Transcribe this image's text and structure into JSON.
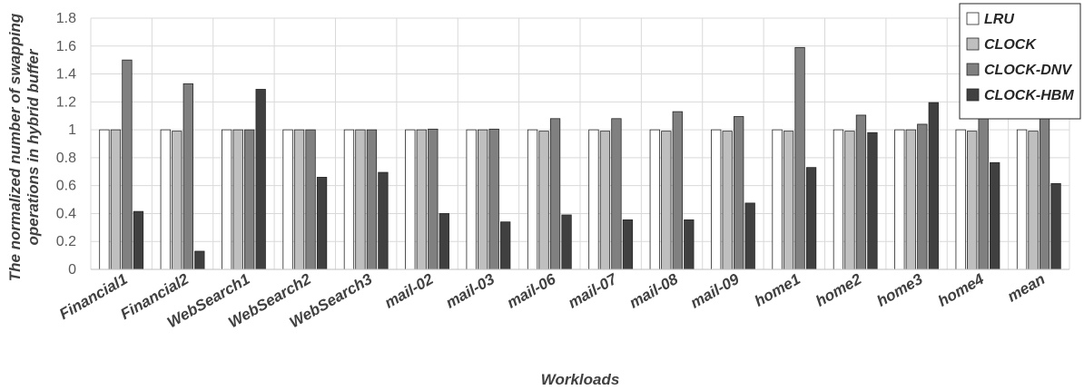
{
  "chart_data": {
    "type": "bar",
    "title": "",
    "xlabel": "Workloads",
    "ylabel": "The normalized number of swapping operations in hybrid buffer",
    "ylim": [
      0,
      1.8
    ],
    "yticks": [
      "0",
      "0.2",
      "0.4",
      "0.6",
      "0.8",
      "1",
      "1.2",
      "1.4",
      "1.6",
      "1.8"
    ],
    "grid": true,
    "legend_position": "top-right",
    "categories": [
      "Financial1",
      "Financial2",
      "WebSearch1",
      "WebSearch2",
      "WebSearch3",
      "mail-02",
      "mail-03",
      "mail-06",
      "mail-07",
      "mail-08",
      "mail-09",
      "home1",
      "home2",
      "home3",
      "home4",
      "mean"
    ],
    "series": [
      {
        "name": "LRU",
        "color": "#ffffff",
        "values": [
          1,
          1,
          1,
          1,
          1,
          1,
          1,
          1,
          1,
          1,
          1,
          1,
          1,
          1,
          1,
          1
        ]
      },
      {
        "name": "CLOCK",
        "color": "#bfbfbf",
        "values": [
          1,
          0.99,
          1,
          1,
          1,
          1,
          1,
          0.99,
          0.99,
          0.99,
          0.99,
          0.99,
          0.99,
          1,
          0.99,
          0.99
        ]
      },
      {
        "name": "CLOCK-DNV",
        "color": "#808080",
        "values": [
          1.5,
          1.33,
          1,
          1,
          1,
          1.005,
          1.005,
          1.08,
          1.08,
          1.13,
          1.095,
          1.59,
          1.105,
          1.04,
          1.23,
          1.145
        ]
      },
      {
        "name": "CLOCK-HBM",
        "color": "#404040",
        "values": [
          0.415,
          0.13,
          1.29,
          0.66,
          0.695,
          0.4,
          0.34,
          0.39,
          0.355,
          0.355,
          0.475,
          0.73,
          0.98,
          1.195,
          0.765,
          0.615
        ]
      }
    ]
  }
}
